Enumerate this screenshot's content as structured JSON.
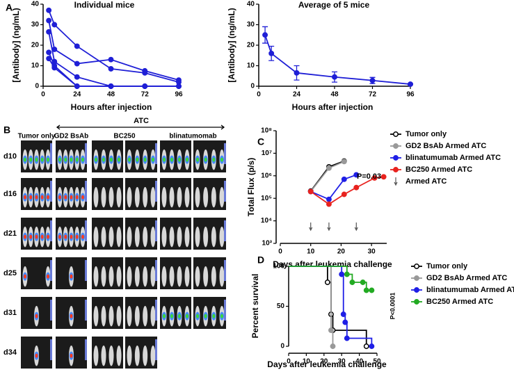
{
  "chart_data": [
    {
      "type": "line",
      "label": "A",
      "title": "Individual mice",
      "x_label": "Hours after injection",
      "y_label": "[Antibody] (ng/mL)",
      "xlim": [
        0,
        96
      ],
      "xticks": [
        0,
        24,
        48,
        72,
        96
      ],
      "ylim": [
        0,
        40
      ],
      "yticks": [
        0,
        10,
        20,
        30,
        40
      ],
      "series": [
        {
          "color": "#1f1fd6",
          "x": [
            4,
            8,
            24,
            48,
            72,
            96
          ],
          "values": [
            37,
            30,
            19.5,
            8.5,
            6.5,
            2
          ]
        },
        {
          "color": "#1f1fd6",
          "x": [
            4,
            8,
            24,
            48,
            72,
            96
          ],
          "values": [
            32,
            18,
            11,
            13,
            7.5,
            3
          ]
        },
        {
          "color": "#1f1fd6",
          "x": [
            4,
            8,
            24,
            48,
            72,
            96
          ],
          "values": [
            26.5,
            12,
            4.5,
            0,
            0,
            0
          ]
        },
        {
          "color": "#1f1fd6",
          "x": [
            4,
            8,
            24,
            48,
            72,
            96
          ],
          "values": [
            16.5,
            10,
            0,
            0,
            0,
            0
          ]
        },
        {
          "color": "#1f1fd6",
          "x": [
            4,
            8,
            24,
            48,
            72,
            96
          ],
          "values": [
            13.5,
            9,
            0,
            0,
            0,
            0
          ]
        }
      ]
    },
    {
      "type": "line",
      "title": "Average of 5 mice",
      "x_label": "Hours after injection",
      "y_label": "[Antibody] (ng/mL)",
      "xlim": [
        0,
        96
      ],
      "xticks": [
        0,
        24,
        48,
        72,
        96
      ],
      "ylim": [
        0,
        40
      ],
      "yticks": [
        0,
        10,
        20,
        30,
        40
      ],
      "series": [
        {
          "color": "#1f1fd6",
          "x": [
            4,
            8,
            24,
            48,
            72,
            96
          ],
          "values": [
            25,
            16,
            6.5,
            4.5,
            2.8,
            1
          ],
          "errors": [
            4,
            3.5,
            3.5,
            2.5,
            1.5,
            0.3
          ]
        }
      ]
    },
    {
      "type": "line",
      "label": "C",
      "x_label": "Days after leukemia challenge",
      "y_label": "Total Flux (p/s)",
      "log_y": true,
      "legend": "right",
      "xlim": [
        0,
        35
      ],
      "xticks": [
        0,
        10,
        20,
        30
      ],
      "ylim": [
        1000,
        100000000
      ],
      "yticks": [
        {
          "value": 1000,
          "label": "10³"
        },
        {
          "value": 10000,
          "label": "10⁴"
        },
        {
          "value": 100000,
          "label": "10⁵"
        },
        {
          "value": 1000000,
          "label": "10⁶"
        },
        {
          "value": 10000000,
          "label": "10⁷"
        },
        {
          "value": 100000000,
          "label": "10⁸"
        }
      ],
      "annotation": "P=0.03",
      "series": [
        {
          "name": "Tumor only",
          "color": "#000000",
          "marker": "open",
          "x": [
            10,
            16,
            21
          ],
          "values": [
            210000,
            2500000,
            4500000
          ]
        },
        {
          "name": "GD2 BsAb Armed ATC",
          "color": "#999999",
          "x": [
            10,
            16,
            21
          ],
          "values": [
            200000,
            2200000,
            4300000
          ]
        },
        {
          "name": "blinatumumab Armed ATC",
          "color": "#1f1fe6",
          "x": [
            10,
            16,
            21,
            25
          ],
          "values": [
            200000,
            90000,
            700000,
            1100000
          ]
        },
        {
          "name": "BC250 Armed ATC",
          "color": "#e8231f",
          "x": [
            10,
            16,
            21,
            25,
            31,
            34
          ],
          "values": [
            200000,
            55000,
            150000,
            300000,
            800000,
            900000
          ]
        }
      ],
      "treatment_label": "Armed ATC",
      "treatment_days": [
        10,
        16,
        25
      ]
    },
    {
      "type": "step",
      "label": "D",
      "x_label": "Days after leukemia challenge",
      "y_label": "Percent survival",
      "legend": "right",
      "xlim": [
        0,
        50
      ],
      "xticks": [
        0,
        10,
        20,
        30,
        40,
        50
      ],
      "ylim": [
        0,
        100
      ],
      "yticks": [
        0,
        50,
        100
      ],
      "annotation": "P<0.0001",
      "series": [
        {
          "name": "Tumor only",
          "color": "#000000",
          "marker": "open",
          "x": [
            0,
            22,
            24,
            25,
            44
          ],
          "values": [
            100,
            80,
            40,
            20,
            0
          ]
        },
        {
          "name": "GD2 BsAb Armed ATC",
          "color": "#999999",
          "x": [
            0,
            24,
            25
          ],
          "values": [
            100,
            20,
            0
          ]
        },
        {
          "name": "blinatumumab Armed ATC",
          "color": "#1f1fe6",
          "x": [
            0,
            30,
            31,
            32,
            33,
            47
          ],
          "values": [
            100,
            90,
            40,
            30,
            10,
            0
          ]
        },
        {
          "name": "BC250 Armed ATC",
          "color": "#22aa22",
          "x": [
            0,
            33,
            36,
            42,
            44,
            47
          ],
          "values": [
            100,
            90,
            80,
            80,
            70,
            70
          ]
        }
      ]
    }
  ],
  "image_panel": {
    "label": "B",
    "group_label": "ATC",
    "columns": [
      "Tumor only",
      "GD2 BsAb",
      "BC250",
      "blinatumomab"
    ],
    "rows": [
      "d10",
      "d16",
      "d21",
      "d25",
      "d31",
      "d34"
    ]
  }
}
